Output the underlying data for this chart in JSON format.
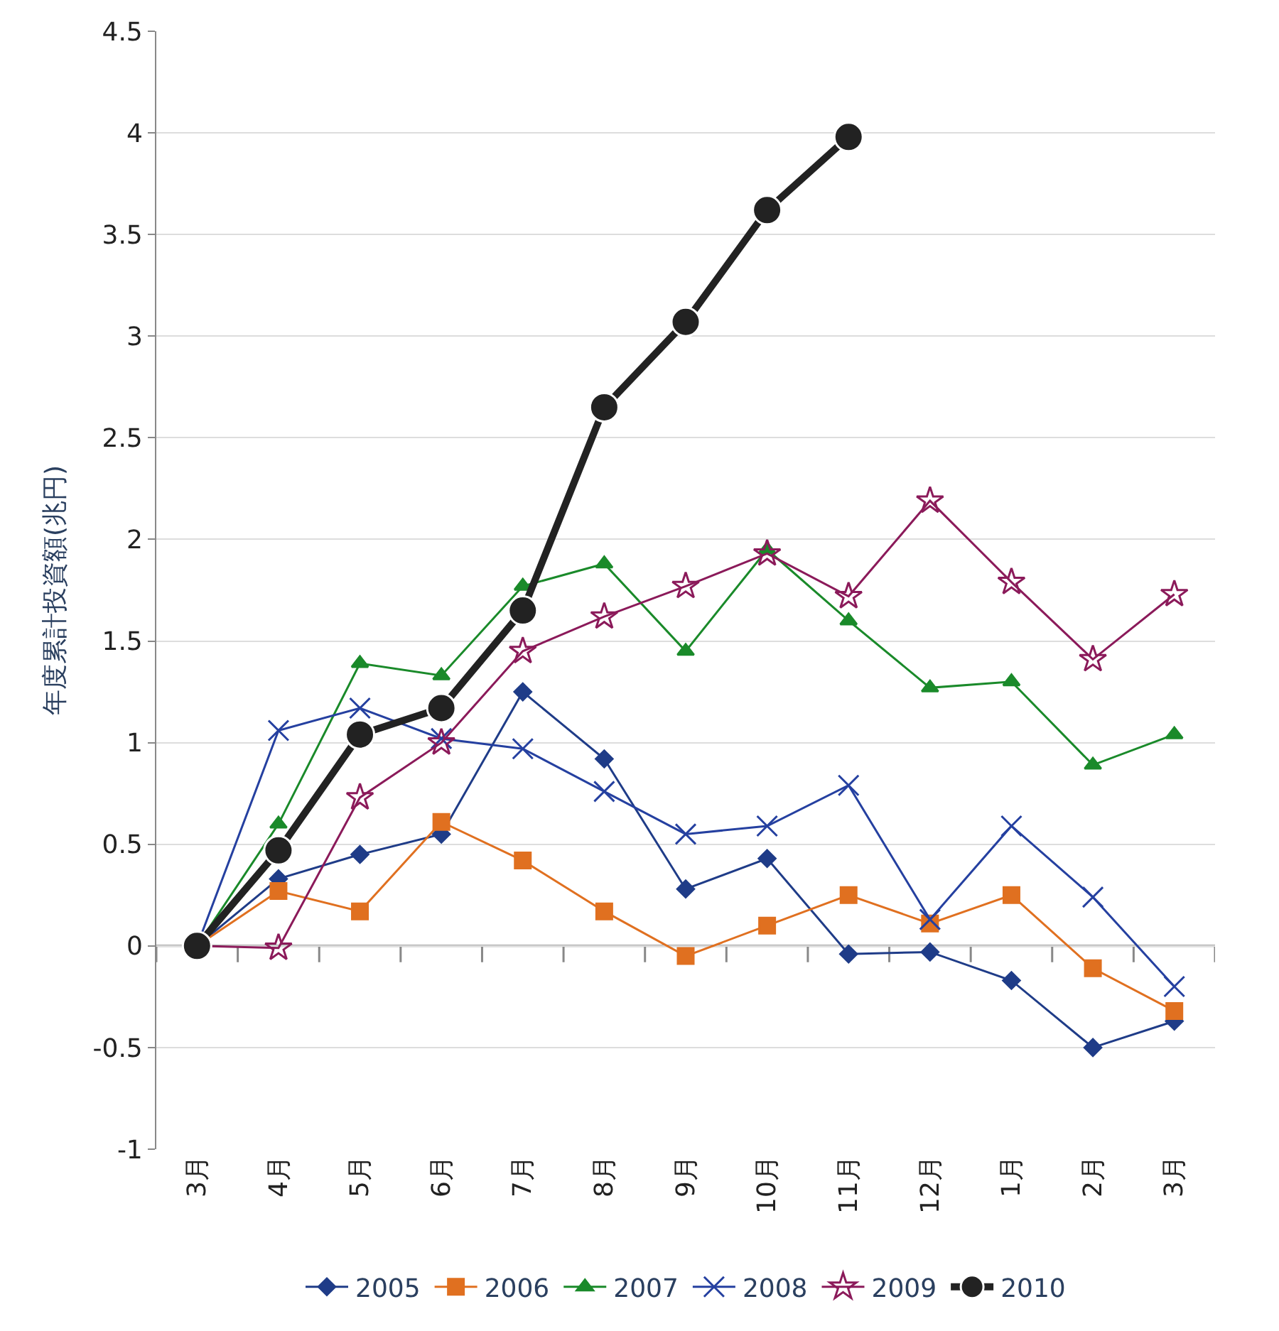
{
  "chart_data": {
    "type": "line",
    "ylabel": "年度累計投資額(兆円)",
    "categories": [
      "3月",
      "4月",
      "5月",
      "6月",
      "7月",
      "8月",
      "9月",
      "10月",
      "11月",
      "12月",
      "1月",
      "2月",
      "3月"
    ],
    "ylim": [
      -1,
      4.5
    ],
    "yticks": [
      -1,
      -0.5,
      0,
      0.5,
      1,
      1.5,
      2,
      2.5,
      3,
      3.5,
      4,
      4.5
    ],
    "grid": "y",
    "legend": "bottom",
    "series": [
      {
        "name": "2005",
        "color": "#1f3c88",
        "marker": "diamond",
        "values": [
          0,
          0.33,
          0.45,
          0.55,
          1.25,
          0.92,
          0.28,
          0.43,
          -0.04,
          -0.03,
          -0.17,
          -0.5,
          -0.37
        ]
      },
      {
        "name": "2006",
        "color": "#e07020",
        "marker": "square",
        "values": [
          0,
          0.27,
          0.17,
          0.61,
          0.42,
          0.17,
          -0.05,
          0.1,
          0.25,
          0.11,
          0.25,
          -0.11,
          -0.32
        ]
      },
      {
        "name": "2007",
        "color": "#1a8a2a",
        "marker": "triangle",
        "values": [
          0,
          0.6,
          1.39,
          1.33,
          1.77,
          1.88,
          1.45,
          1.95,
          1.6,
          1.27,
          1.3,
          0.89,
          1.04
        ]
      },
      {
        "name": "2008",
        "color": "#2540a0",
        "marker": "cross",
        "values": [
          0,
          1.06,
          1.17,
          1.02,
          0.97,
          0.76,
          0.55,
          0.59,
          0.79,
          0.13,
          0.59,
          0.24,
          -0.2
        ]
      },
      {
        "name": "2009",
        "color": "#8b1a5a",
        "marker": "star",
        "values": [
          0,
          -0.01,
          0.73,
          1.0,
          1.45,
          1.62,
          1.77,
          1.93,
          1.72,
          2.19,
          1.79,
          1.41,
          1.73
        ]
      },
      {
        "name": "2010",
        "color": "#222222",
        "marker": "circle",
        "values": [
          0,
          0.47,
          1.04,
          1.17,
          1.65,
          2.65,
          3.07,
          3.62,
          3.98,
          null,
          null,
          null,
          null
        ]
      }
    ]
  }
}
